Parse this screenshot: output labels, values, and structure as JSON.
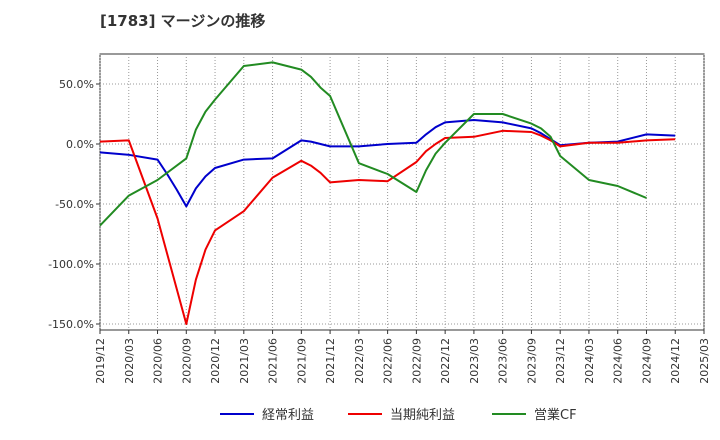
{
  "chart_data": {
    "type": "line",
    "title": "[1783]  マージンの推移",
    "xlabel": "",
    "ylabel": "",
    "ylim": [
      -155,
      75
    ],
    "yticks": [
      50,
      0,
      -50,
      -100,
      -150
    ],
    "ytick_labels": [
      "50.0%",
      "0.0%",
      "-50.0%",
      "-100.0%",
      "-150.0%"
    ],
    "xticks": [
      "2019/12",
      "2020/03",
      "2020/06",
      "2020/09",
      "2020/12",
      "2021/03",
      "2021/06",
      "2021/09",
      "2021/12",
      "2022/03",
      "2022/06",
      "2022/09",
      "2022/12",
      "2023/03",
      "2023/06",
      "2023/09",
      "2023/12",
      "2024/03",
      "2024/06",
      "2024/09",
      "2024/12",
      "2025/03"
    ],
    "grid": true,
    "legend_position": "bottom",
    "series": [
      {
        "name": "経常利益",
        "color": "#0000cc",
        "points": [
          [
            "2019/12",
            -7
          ],
          [
            "2020/03",
            -9
          ],
          [
            "2020/06",
            -13
          ],
          [
            "2020/07",
            -25
          ],
          [
            "2020/08",
            -38
          ],
          [
            "2020/09",
            -52
          ],
          [
            "2020/10",
            -37
          ],
          [
            "2020/11",
            -27
          ],
          [
            "2020/12",
            -20
          ],
          [
            "2021/03",
            -13
          ],
          [
            "2021/06",
            -12
          ],
          [
            "2021/09",
            3
          ],
          [
            "2021/10",
            2
          ],
          [
            "2021/11",
            0
          ],
          [
            "2021/12",
            -2
          ],
          [
            "2022/03",
            -2
          ],
          [
            "2022/06",
            0
          ],
          [
            "2022/09",
            1
          ],
          [
            "2022/10",
            8
          ],
          [
            "2022/11",
            14
          ],
          [
            "2022/12",
            18
          ],
          [
            "2023/03",
            20
          ],
          [
            "2023/06",
            18
          ],
          [
            "2023/09",
            13
          ],
          [
            "2023/10",
            9
          ],
          [
            "2023/11",
            4
          ],
          [
            "2023/12",
            -1
          ],
          [
            "2024/03",
            1
          ],
          [
            "2024/06",
            2
          ],
          [
            "2024/09",
            8
          ],
          [
            "2024/12",
            7
          ]
        ]
      },
      {
        "name": "当期純利益",
        "color": "#ee0000",
        "points": [
          [
            "2019/12",
            2
          ],
          [
            "2020/03",
            3
          ],
          [
            "2020/06",
            -62
          ],
          [
            "2020/09",
            -150
          ],
          [
            "2020/10",
            -113
          ],
          [
            "2020/11",
            -88
          ],
          [
            "2020/12",
            -72
          ],
          [
            "2021/03",
            -56
          ],
          [
            "2021/06",
            -28
          ],
          [
            "2021/09",
            -14
          ],
          [
            "2021/10",
            -18
          ],
          [
            "2021/11",
            -24
          ],
          [
            "2021/12",
            -32
          ],
          [
            "2022/03",
            -30
          ],
          [
            "2022/06",
            -31
          ],
          [
            "2022/09",
            -15
          ],
          [
            "2022/10",
            -6
          ],
          [
            "2022/11",
            0
          ],
          [
            "2022/12",
            5
          ],
          [
            "2023/03",
            6
          ],
          [
            "2023/06",
            11
          ],
          [
            "2023/09",
            10
          ],
          [
            "2023/10",
            7
          ],
          [
            "2023/11",
            3
          ],
          [
            "2023/12",
            -2
          ],
          [
            "2024/03",
            1
          ],
          [
            "2024/06",
            1
          ],
          [
            "2024/09",
            3
          ],
          [
            "2024/12",
            4
          ]
        ]
      },
      {
        "name": "営業CF",
        "color": "#228b22",
        "points": [
          [
            "2019/12",
            -68
          ],
          [
            "2020/03",
            -43
          ],
          [
            "2020/06",
            -30
          ],
          [
            "2020/09",
            -12
          ],
          [
            "2020/10",
            12
          ],
          [
            "2020/11",
            27
          ],
          [
            "2020/12",
            37
          ],
          [
            "2021/03",
            65
          ],
          [
            "2021/06",
            68
          ],
          [
            "2021/09",
            62
          ],
          [
            "2021/10",
            56
          ],
          [
            "2021/11",
            47
          ],
          [
            "2021/12",
            40
          ],
          [
            "2022/03",
            -16
          ],
          [
            "2022/06",
            -25
          ],
          [
            "2022/09",
            -40
          ],
          [
            "2022/10",
            -22
          ],
          [
            "2022/11",
            -8
          ],
          [
            "2022/12",
            1
          ],
          [
            "2023/03",
            25
          ],
          [
            "2023/06",
            25
          ],
          [
            "2023/09",
            17
          ],
          [
            "2023/10",
            13
          ],
          [
            "2023/11",
            6
          ],
          [
            "2023/12",
            -10
          ],
          [
            "2024/03",
            -30
          ],
          [
            "2024/06",
            -35
          ],
          [
            "2024/09",
            -45
          ]
        ]
      }
    ]
  }
}
